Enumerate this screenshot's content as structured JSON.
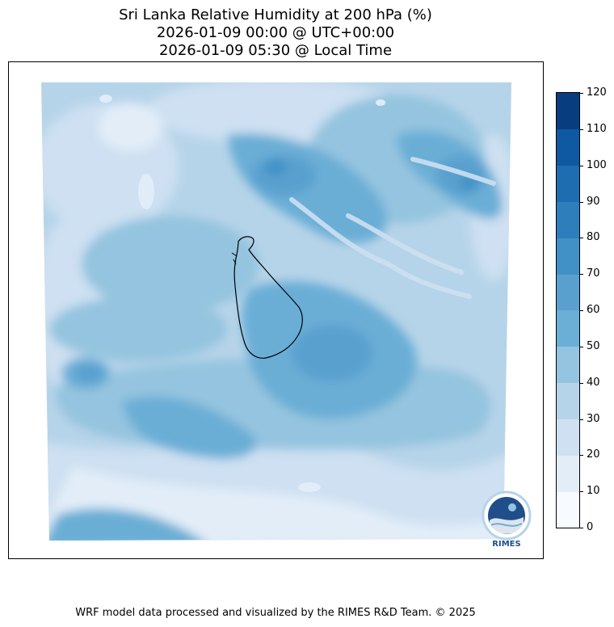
{
  "title": {
    "line1": "Sri Lanka Relative Humidity at 200 hPa (%)",
    "line2": "2026-01-09 00:00 @ UTC+00:00",
    "line3": "2026-01-09 05:30 @ Local Time"
  },
  "colorbar": {
    "labels": [
      "0",
      "10",
      "20",
      "30",
      "40",
      "50",
      "60",
      "70",
      "80",
      "90",
      "100",
      "110",
      "120"
    ],
    "colors": [
      "#f7fbff",
      "#e2edf8",
      "#cee0f2",
      "#b6d4e9",
      "#94c4df",
      "#6baed6",
      "#5aa0cf",
      "#4191c6",
      "#2f7ebc",
      "#1f6db1",
      "#0e59a2",
      "#083d7f"
    ]
  },
  "logo": {
    "text": "RIMES"
  },
  "footer": {
    "text": "WRF model data processed and visualized by the RIMES R&D Team. © 2025"
  },
  "colors": {
    "level1": "#e2edf8",
    "level2": "#cee0f2",
    "level3": "#b6d4e9",
    "level4": "#94c4df",
    "level5": "#6baed6",
    "level6": "#5aa0cf",
    "level7": "#4191c6"
  }
}
